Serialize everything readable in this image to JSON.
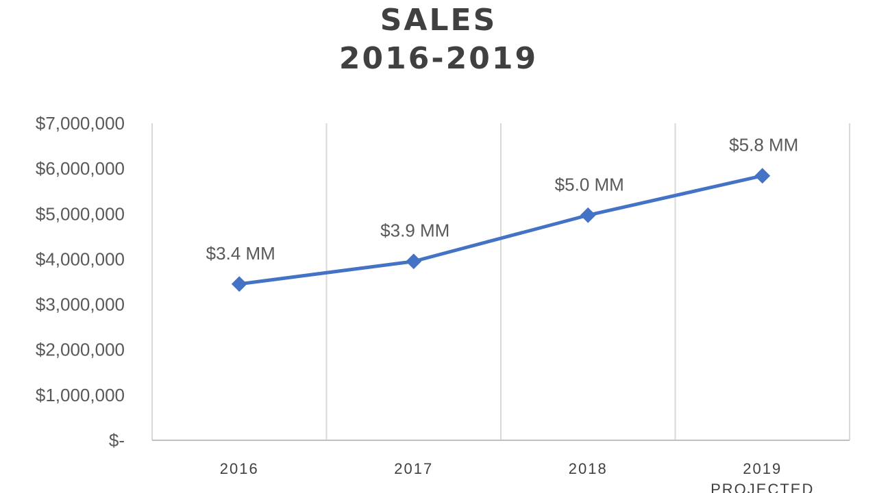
{
  "chart_data": {
    "type": "line",
    "title": [
      "SALES",
      "2016-2019"
    ],
    "categories": [
      [
        "2016"
      ],
      [
        "2017"
      ],
      [
        "2018"
      ],
      [
        "2019",
        "PROJECTED"
      ]
    ],
    "series": [
      {
        "values": [
          3450000,
          3950000,
          4970000,
          5840000
        ],
        "data_labels": [
          "$3.4 MM",
          "$3.9 MM",
          "$5.0 MM",
          "$5.8 MM"
        ],
        "color": "#4472C4"
      }
    ],
    "y_ticks": [
      "$-",
      "$1,000,000",
      "$2,000,000",
      "$3,000,000",
      "$4,000,000",
      "$5,000,000",
      "$6,000,000",
      "$7,000,000"
    ],
    "ylim": [
      0,
      7000000
    ],
    "grid": "vertical",
    "gridColor": "#D9D9D9",
    "axisColor": "#BFBFBF"
  }
}
